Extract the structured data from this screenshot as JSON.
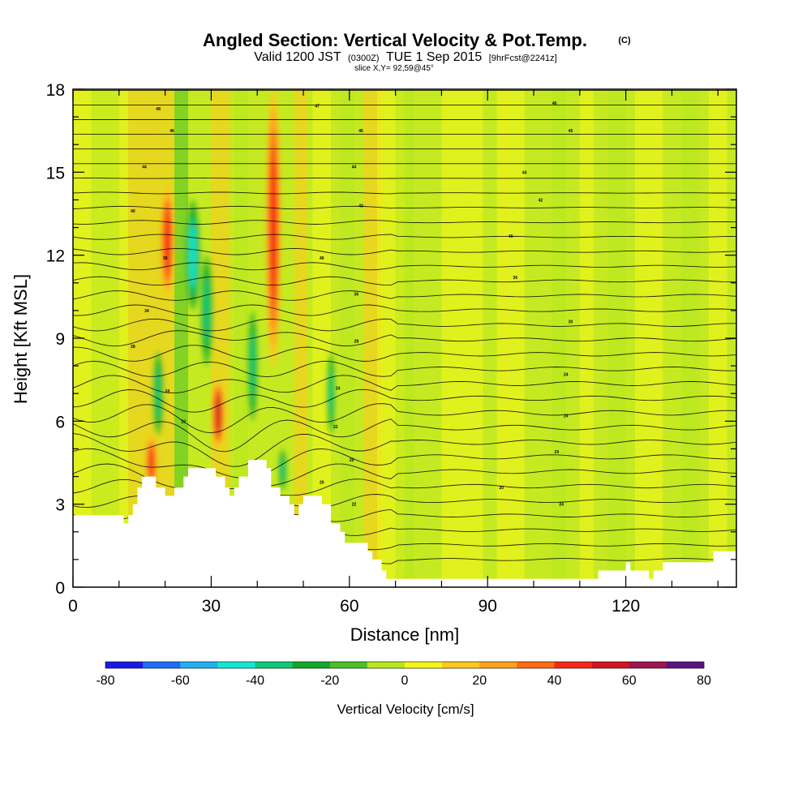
{
  "header": {
    "title": "Angled Section: Vertical Velocity & Pot.Temp.",
    "title_unit": "(C)",
    "valid_prefix": "Valid 1200 JST",
    "valid_utc": "(0300Z)",
    "valid_date": "TUE 1 Sep 2015",
    "forecast_tag": "[9hrFcst@2241z]",
    "slice": "slice X,Y= 92,59@45°"
  },
  "chart_data": {
    "type": "heatmap",
    "xlabel": "Distance [nm]",
    "ylabel": "Height [Kft MSL]",
    "xlim": [
      0,
      144
    ],
    "ylim": [
      0,
      18
    ],
    "x_ticks": [
      0,
      30,
      60,
      90,
      120
    ],
    "y_ticks": [
      0,
      3,
      6,
      9,
      12,
      15,
      18
    ],
    "colorbar": {
      "title": "Vertical Velocity [cm/s]",
      "ticks": [
        -80,
        -60,
        -40,
        -20,
        0,
        20,
        40,
        60,
        80
      ],
      "levels": [
        -80,
        -70,
        -60,
        -50,
        -40,
        -30,
        -20,
        -10,
        0,
        10,
        20,
        30,
        40,
        50,
        60,
        70,
        80
      ],
      "colors": [
        "#1a1ae6",
        "#1f6ff5",
        "#20b0f0",
        "#14e6d2",
        "#10c878",
        "#12a82a",
        "#4cc028",
        "#b8e61e",
        "#f5f51a",
        "#ffc81e",
        "#ffa01e",
        "#ff6a14",
        "#f52814",
        "#d2141e",
        "#a01450",
        "#5a1482"
      ]
    },
    "terrain_kft": [
      [
        0,
        2.6
      ],
      [
        10,
        2.6
      ],
      [
        11,
        2.3
      ],
      [
        12,
        2.6
      ],
      [
        13,
        3.0
      ],
      [
        14,
        3.6
      ],
      [
        15,
        4.0
      ],
      [
        18,
        3.6
      ],
      [
        20,
        3.3
      ],
      [
        22,
        3.6
      ],
      [
        24,
        4.0
      ],
      [
        25,
        4.3
      ],
      [
        30,
        4.3
      ],
      [
        31,
        4.0
      ],
      [
        33,
        3.6
      ],
      [
        34,
        3.3
      ],
      [
        35,
        3.6
      ],
      [
        36,
        4.0
      ],
      [
        38,
        4.6
      ],
      [
        41,
        4.6
      ],
      [
        42,
        4.3
      ],
      [
        43,
        3.6
      ],
      [
        45,
        3.3
      ],
      [
        47,
        3.0
      ],
      [
        48,
        2.6
      ],
      [
        49,
        3.0
      ],
      [
        50,
        3.3
      ],
      [
        54,
        3.0
      ],
      [
        56,
        2.3
      ],
      [
        58,
        2.0
      ],
      [
        59,
        1.6
      ],
      [
        63,
        1.6
      ],
      [
        64,
        1.3
      ],
      [
        65,
        1.0
      ],
      [
        67,
        0.6
      ],
      [
        68,
        0.3
      ],
      [
        113,
        0.3
      ],
      [
        114,
        0.6
      ],
      [
        119,
        0.6
      ],
      [
        120,
        0.9
      ],
      [
        121,
        0.6
      ],
      [
        124,
        0.6
      ],
      [
        125,
        0.3
      ],
      [
        126,
        0.6
      ],
      [
        128,
        0.9
      ],
      [
        138,
        0.9
      ],
      [
        139,
        1.3
      ],
      [
        144,
        1.3
      ]
    ],
    "vertical_velocity_features": [
      {
        "x": 17,
        "y_range": [
          3.5,
          5.5
        ],
        "w": 1.2,
        "peak_cm_s": 40
      },
      {
        "x": 20.5,
        "y_range": [
          10.5,
          14.5
        ],
        "w": 1.4,
        "peak_cm_s": 45
      },
      {
        "x": 31.5,
        "y_range": [
          5.0,
          7.5
        ],
        "w": 1.2,
        "peak_cm_s": 55
      },
      {
        "x": 43.5,
        "y_range": [
          8.0,
          18.0
        ],
        "w": 1.6,
        "peak_cm_s": 40
      },
      {
        "x": 26,
        "y_range": [
          10.0,
          14.0
        ],
        "w": 1.5,
        "peak_cm_s": -40
      },
      {
        "x": 29,
        "y_range": [
          8.0,
          12.0
        ],
        "w": 1.2,
        "peak_cm_s": -30
      },
      {
        "x": 18.5,
        "y_range": [
          5.5,
          8.5
        ],
        "w": 1.0,
        "peak_cm_s": -30
      },
      {
        "x": 39,
        "y_range": [
          6.0,
          10.0
        ],
        "w": 1.0,
        "peak_cm_s": -30
      },
      {
        "x": 56,
        "y_range": [
          5.5,
          8.5
        ],
        "w": 0.8,
        "peak_cm_s": -30
      },
      {
        "x": 45.5,
        "y_range": [
          3.5,
          5.0
        ],
        "w": 0.8,
        "peak_cm_s": -30
      }
    ],
    "isentrope_labels": [
      {
        "x": 18.5,
        "y": 17.3,
        "text": "48"
      },
      {
        "x": 21.5,
        "y": 16.5,
        "text": "46"
      },
      {
        "x": 15.5,
        "y": 15.2,
        "text": "44"
      },
      {
        "x": 13,
        "y": 13.6,
        "text": "40"
      },
      {
        "x": 20,
        "y": 11.9,
        "text": "38"
      },
      {
        "x": 16,
        "y": 10.0,
        "text": "34"
      },
      {
        "x": 13,
        "y": 8.7,
        "text": "28"
      },
      {
        "x": 20.5,
        "y": 7.1,
        "text": "24"
      },
      {
        "x": 24,
        "y": 6.0,
        "text": "22"
      },
      {
        "x": 53,
        "y": 17.4,
        "text": "47"
      },
      {
        "x": 62.5,
        "y": 16.5,
        "text": "45"
      },
      {
        "x": 61,
        "y": 15.2,
        "text": "44"
      },
      {
        "x": 62.5,
        "y": 13.8,
        "text": "43"
      },
      {
        "x": 54,
        "y": 11.9,
        "text": "40"
      },
      {
        "x": 61.5,
        "y": 10.6,
        "text": "36"
      },
      {
        "x": 61.5,
        "y": 8.9,
        "text": "28"
      },
      {
        "x": 57.5,
        "y": 7.2,
        "text": "24"
      },
      {
        "x": 57,
        "y": 5.8,
        "text": "22"
      },
      {
        "x": 60.5,
        "y": 4.6,
        "text": "20"
      },
      {
        "x": 54,
        "y": 3.8,
        "text": "20"
      },
      {
        "x": 61,
        "y": 3.0,
        "text": "22"
      },
      {
        "x": 104.5,
        "y": 17.5,
        "text": "46"
      },
      {
        "x": 108,
        "y": 16.5,
        "text": "45"
      },
      {
        "x": 98,
        "y": 15.0,
        "text": "44"
      },
      {
        "x": 101.5,
        "y": 14.0,
        "text": "42"
      },
      {
        "x": 95,
        "y": 12.7,
        "text": "40"
      },
      {
        "x": 96,
        "y": 11.2,
        "text": "36"
      },
      {
        "x": 108,
        "y": 9.6,
        "text": "30"
      },
      {
        "x": 107,
        "y": 7.7,
        "text": "24"
      },
      {
        "x": 107,
        "y": 6.2,
        "text": "24"
      },
      {
        "x": 105,
        "y": 4.9,
        "text": "20"
      },
      {
        "x": 93,
        "y": 3.6,
        "text": "20"
      },
      {
        "x": 106,
        "y": 3.0,
        "text": "24"
      }
    ]
  }
}
